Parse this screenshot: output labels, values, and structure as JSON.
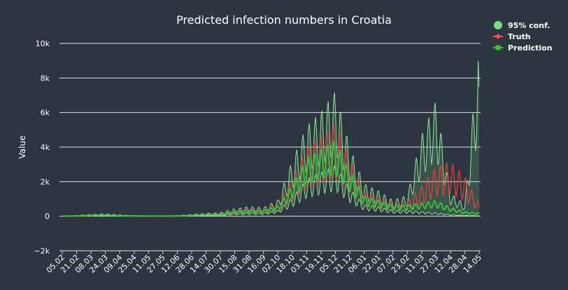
{
  "chart_data": {
    "type": "line",
    "title": "Predicted infection numbers in Croatia",
    "xlabel": "",
    "ylabel": "Value",
    "ylim": [
      -2000,
      10000
    ],
    "y_ticks": [
      -2000,
      0,
      2000,
      4000,
      6000,
      8000,
      10000
    ],
    "y_tick_labels": [
      "−2k",
      "0",
      "2k",
      "4k",
      "6k",
      "8k",
      "10k"
    ],
    "grid": true,
    "legend_position": "top-right",
    "x_tick_labels": [
      "05.02",
      "21.02",
      "08.03",
      "24.03",
      "09.04",
      "25.04",
      "11.05",
      "27.05",
      "12.06",
      "28.06",
      "14.07",
      "30.07",
      "15.08",
      "31.08",
      "16.09",
      "02.10",
      "18.10",
      "03.11",
      "19.11",
      "05.12",
      "21.12",
      "06.01",
      "22.01",
      "07.02",
      "23.02",
      "11.03",
      "27.03",
      "12.04",
      "28.04",
      "14.05"
    ],
    "legend": [
      {
        "name": "95% conf.",
        "color": "#7fd98a",
        "symbol": "circle"
      },
      {
        "name": "Truth",
        "color": "#ff4d4d",
        "symbol": "diamond"
      },
      {
        "name": "Prediction",
        "color": "#3cbf3c",
        "symbol": "square"
      }
    ],
    "series_approx_weekly": {
      "note": "approximate daily-averaged levels read from the chart at each x tick",
      "truth": [
        0,
        30,
        60,
        80,
        40,
        20,
        10,
        10,
        20,
        60,
        100,
        120,
        250,
        300,
        280,
        500,
        1500,
        2800,
        3200,
        3800,
        2300,
        1000,
        800,
        500,
        600,
        1200,
        2000,
        2200,
        1600,
        500
      ],
      "prediction": [
        0,
        20,
        50,
        70,
        40,
        20,
        10,
        10,
        20,
        50,
        90,
        110,
        220,
        280,
        260,
        450,
        1400,
        2600,
        3000,
        3400,
        2000,
        900,
        700,
        500,
        500,
        600,
        700,
        400,
        200,
        150
      ],
      "conf_upper": [
        0,
        40,
        80,
        110,
        60,
        30,
        20,
        20,
        30,
        80,
        130,
        160,
        330,
        420,
        380,
        700,
        2400,
        3900,
        4500,
        5400,
        3000,
        1400,
        1100,
        700,
        900,
        3500,
        5000,
        1000,
        500,
        7500
      ],
      "conf_lower": [
        0,
        10,
        20,
        30,
        15,
        5,
        0,
        0,
        5,
        20,
        40,
        50,
        120,
        150,
        140,
        250,
        800,
        1600,
        1900,
        2200,
        1200,
        500,
        400,
        250,
        250,
        200,
        150,
        80,
        40,
        20
      ]
    }
  }
}
